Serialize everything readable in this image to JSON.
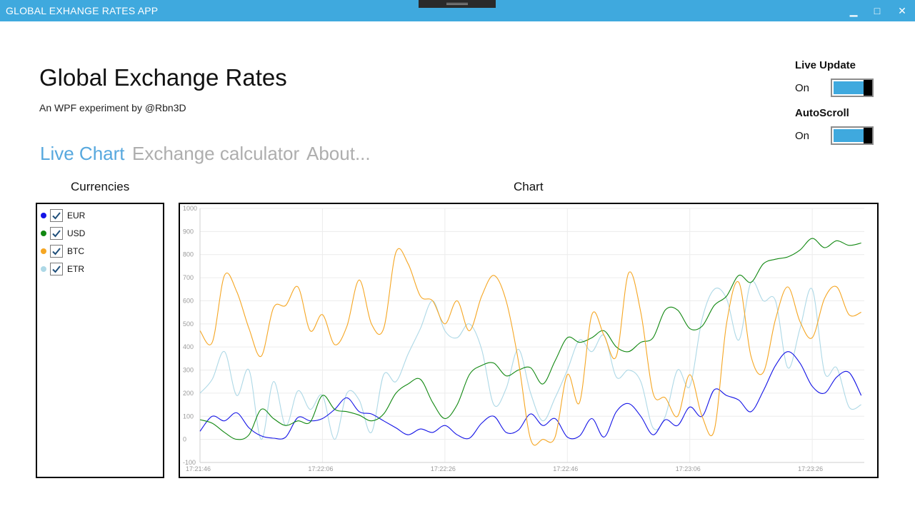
{
  "window": {
    "title": "GLOBAL EXHANGE RATES APP",
    "minimize_glyph": "▁",
    "maximize_glyph": "□",
    "close_glyph": "✕"
  },
  "header": {
    "title": "Global Exchange Rates",
    "subtitle": "An WPF experiment by @Rbn3D"
  },
  "toggles": [
    {
      "label": "Live Update",
      "state": "On",
      "on": true
    },
    {
      "label": "AutoScroll",
      "state": "On",
      "on": true
    }
  ],
  "tabs": [
    {
      "label": "Live Chart",
      "active": true
    },
    {
      "label": "Exchange calculator",
      "active": false
    },
    {
      "label": "About...",
      "active": false
    }
  ],
  "sections": {
    "currencies_label": "Currencies",
    "chart_label": "Chart"
  },
  "currencies": [
    {
      "name": "EUR",
      "color": "#1414e6",
      "checked": true
    },
    {
      "name": "USD",
      "color": "#118811",
      "checked": true
    },
    {
      "name": "BTC",
      "color": "#f5a623",
      "checked": true
    },
    {
      "name": "ETR",
      "color": "#add8e6",
      "checked": true
    }
  ],
  "accent_color": "#3fa9de",
  "chart_data": {
    "type": "line",
    "ylim": [
      -100,
      1000
    ],
    "y_ticks": [
      "1000",
      "900",
      "800",
      "700",
      "600",
      "500",
      "400",
      "300",
      "200",
      "100",
      "0",
      "-100"
    ],
    "x_ticks": [
      "17:21:46",
      "17:22:06",
      "17:22:26",
      "17:22:46",
      "17:23:06",
      "17:23:26"
    ],
    "x_range_seconds": [
      0,
      108.5
    ],
    "grid": true,
    "series": [
      {
        "name": "EUR",
        "color": "#1414e6",
        "x": [
          0,
          2,
          4,
          6,
          8,
          10,
          12,
          14,
          16,
          18,
          20,
          22,
          24,
          26,
          28,
          30,
          32,
          34,
          36,
          38,
          40,
          42,
          44,
          46,
          48,
          50,
          52,
          54,
          56,
          58,
          60,
          62,
          64,
          66,
          68,
          70,
          72,
          74,
          76,
          78,
          80,
          82,
          84,
          86,
          88,
          90,
          92,
          94,
          96,
          98,
          100,
          102,
          104,
          106,
          108
        ],
        "y": [
          35,
          100,
          80,
          115,
          50,
          15,
          5,
          10,
          95,
          80,
          90,
          130,
          180,
          120,
          110,
          80,
          50,
          20,
          45,
          30,
          60,
          20,
          5,
          70,
          100,
          30,
          40,
          110,
          60,
          90,
          10,
          15,
          90,
          10,
          120,
          155,
          100,
          20,
          85,
          60,
          140,
          100,
          215,
          190,
          170,
          120,
          210,
          320,
          380,
          330,
          230,
          200,
          270,
          290,
          190
        ]
      },
      {
        "name": "USD",
        "color": "#118811",
        "x": [
          0,
          2,
          4,
          6,
          8,
          10,
          12,
          14,
          16,
          18,
          20,
          22,
          24,
          26,
          28,
          30,
          32,
          34,
          36,
          38,
          40,
          42,
          44,
          46,
          48,
          50,
          52,
          54,
          56,
          58,
          60,
          62,
          64,
          66,
          68,
          70,
          72,
          74,
          76,
          78,
          80,
          82,
          84,
          86,
          88,
          90,
          92,
          94,
          96,
          98,
          100,
          102,
          104,
          106,
          108
        ],
        "y": [
          85,
          70,
          30,
          0,
          20,
          130,
          90,
          60,
          80,
          75,
          190,
          130,
          120,
          105,
          80,
          110,
          200,
          240,
          260,
          160,
          90,
          150,
          280,
          320,
          330,
          275,
          300,
          310,
          240,
          340,
          440,
          420,
          440,
          470,
          400,
          380,
          420,
          440,
          560,
          560,
          480,
          490,
          580,
          620,
          710,
          680,
          760,
          780,
          790,
          820,
          870,
          830,
          860,
          840,
          850
        ]
      },
      {
        "name": "BTC",
        "color": "#f5a623",
        "x": [
          0,
          2,
          4,
          6,
          8,
          10,
          12,
          14,
          16,
          18,
          20,
          22,
          24,
          26,
          28,
          30,
          32,
          34,
          36,
          38,
          40,
          42,
          44,
          46,
          48,
          50,
          52,
          54,
          56,
          58,
          60,
          62,
          64,
          66,
          68,
          70,
          72,
          74,
          76,
          78,
          80,
          82,
          84,
          86,
          88,
          90,
          92,
          94,
          96,
          98,
          100,
          102,
          104,
          106,
          108
        ],
        "y": [
          470,
          420,
          710,
          640,
          480,
          360,
          570,
          580,
          660,
          470,
          540,
          410,
          490,
          690,
          500,
          480,
          810,
          760,
          620,
          600,
          500,
          600,
          470,
          620,
          710,
          600,
          340,
          0,
          0,
          10,
          280,
          160,
          540,
          450,
          360,
          720,
          550,
          200,
          180,
          100,
          280,
          100,
          40,
          500,
          680,
          360,
          290,
          520,
          660,
          510,
          440,
          610,
          660,
          540,
          550
        ]
      },
      {
        "name": "ETR",
        "color": "#add8e6",
        "x": [
          0,
          2,
          4,
          6,
          8,
          10,
          12,
          14,
          16,
          18,
          20,
          22,
          24,
          26,
          28,
          30,
          32,
          34,
          36,
          38,
          40,
          42,
          44,
          46,
          48,
          50,
          52,
          54,
          56,
          58,
          60,
          62,
          64,
          66,
          68,
          70,
          72,
          74,
          76,
          78,
          80,
          82,
          84,
          86,
          88,
          90,
          92,
          94,
          96,
          98,
          100,
          102,
          104,
          106,
          108
        ],
        "y": [
          200,
          260,
          380,
          190,
          300,
          0,
          250,
          60,
          210,
          130,
          190,
          0,
          200,
          170,
          30,
          280,
          250,
          370,
          480,
          600,
          470,
          440,
          500,
          390,
          150,
          220,
          390,
          200,
          80,
          180,
          300,
          430,
          380,
          450,
          270,
          300,
          250,
          50,
          100,
          300,
          230,
          520,
          650,
          610,
          430,
          680,
          600,
          600,
          310,
          480,
          650,
          290,
          310,
          140,
          150
        ]
      }
    ]
  }
}
